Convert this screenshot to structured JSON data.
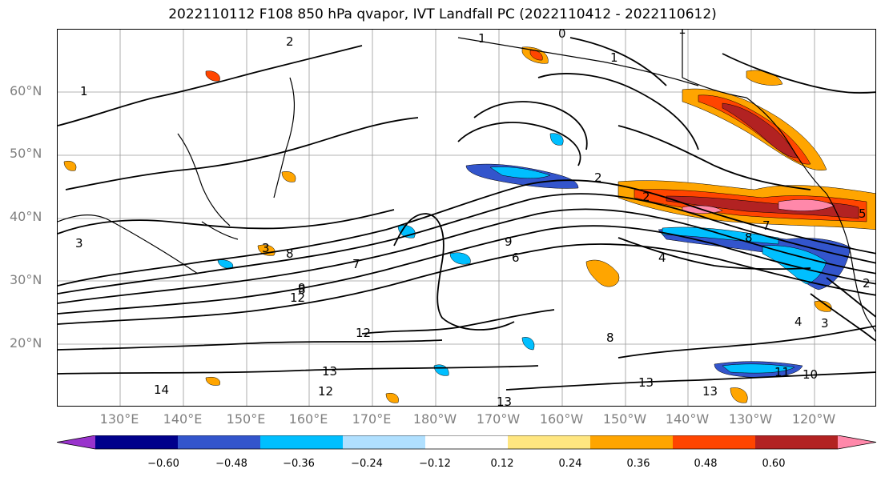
{
  "title": "2022110112 F108 850 hPa qvapor, IVT Landfall PC (2022110412 - 2022110612)",
  "lat_labels": [
    "60°N",
    "50°N",
    "40°N",
    "30°N",
    "20°N"
  ],
  "lon_labels": [
    "130°E",
    "140°E",
    "150°E",
    "160°E",
    "170°E",
    "180°W",
    "170°W",
    "160°W",
    "150°W",
    "140°W",
    "130°W",
    "120°W"
  ],
  "colorbar": {
    "ticks": [
      "−0.60",
      "−0.48",
      "−0.36",
      "−0.24",
      "−0.12",
      "0.12",
      "0.24",
      "0.36",
      "0.48",
      "0.60"
    ],
    "colors": [
      "#9933cc",
      "#00008b",
      "#3355cc",
      "#00bfff",
      "#b0e0ff",
      "#ffffff",
      "#ffe680",
      "#ffa500",
      "#ff4500",
      "#b22222",
      "#ff88aa"
    ]
  },
  "contour_labels": [
    "1",
    "2",
    "1",
    "0",
    "1",
    "1",
    "2",
    "2",
    "3",
    "3",
    "8",
    "7",
    "8",
    "9",
    "6",
    "7",
    "8",
    "4",
    "5",
    "12",
    "12",
    "13",
    "14",
    "13",
    "12",
    "13",
    "13",
    "11",
    "10",
    "4",
    "3",
    "8",
    "2",
    "9"
  ]
}
